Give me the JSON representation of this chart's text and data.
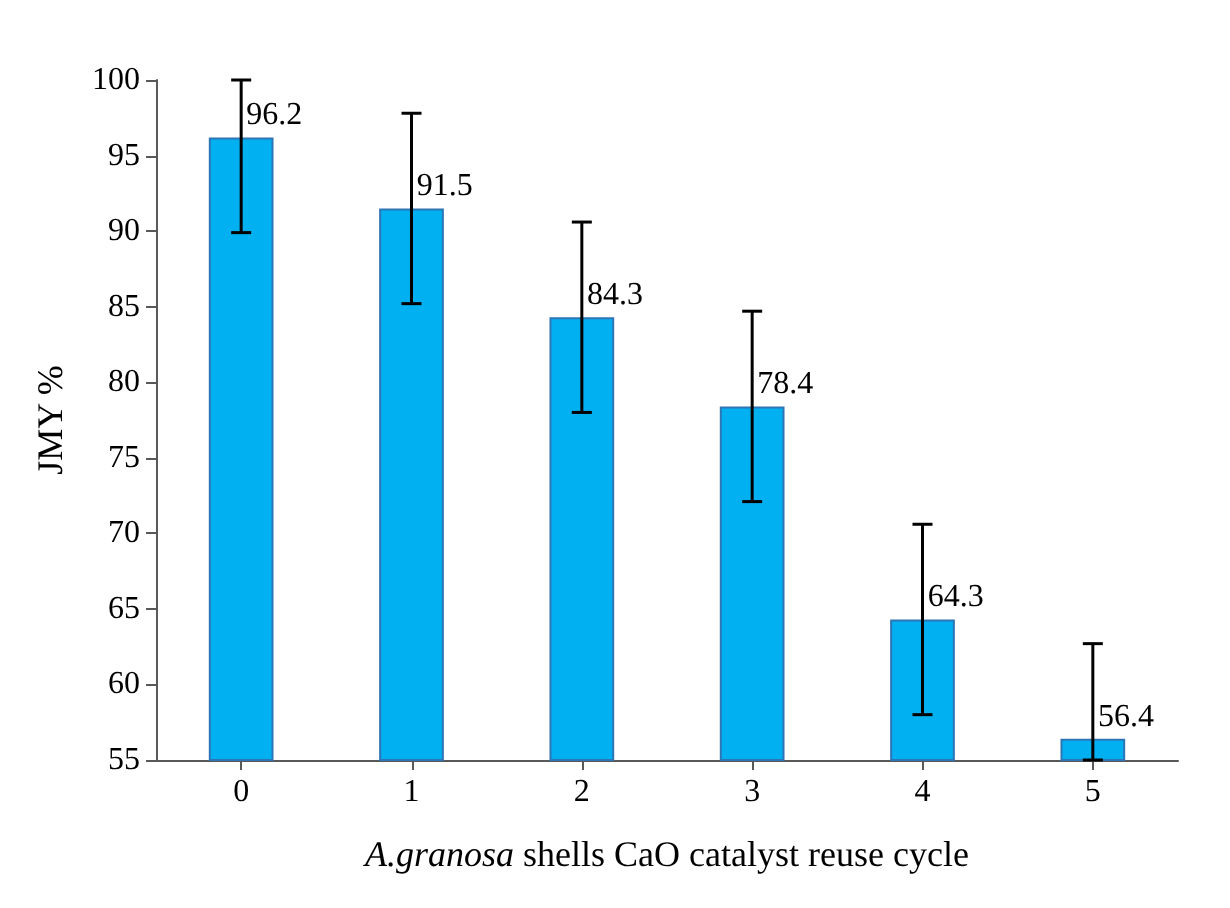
{
  "chart_data": {
    "type": "bar",
    "xlabel": "A.granosa shells CaO catalyst reuse cycle",
    "ylabel": "JMY %",
    "categories": [
      "0",
      "1",
      "2",
      "3",
      "4",
      "5"
    ],
    "values": [
      96.2,
      91.5,
      84.3,
      78.4,
      64.3,
      56.4
    ],
    "errors": [
      [
        89.9,
        100
      ],
      [
        85.2,
        97.8
      ],
      [
        78,
        90.6
      ],
      [
        72.1,
        84.7
      ],
      [
        58,
        70.6
      ],
      [
        55,
        62.7
      ]
    ],
    "color": "#00b0f0",
    "ylim": [
      55,
      100
    ],
    "yticks": [
      55,
      60,
      65,
      70,
      75,
      80,
      85,
      90,
      95,
      100
    ],
    "grid": false,
    "data_labels": true
  }
}
